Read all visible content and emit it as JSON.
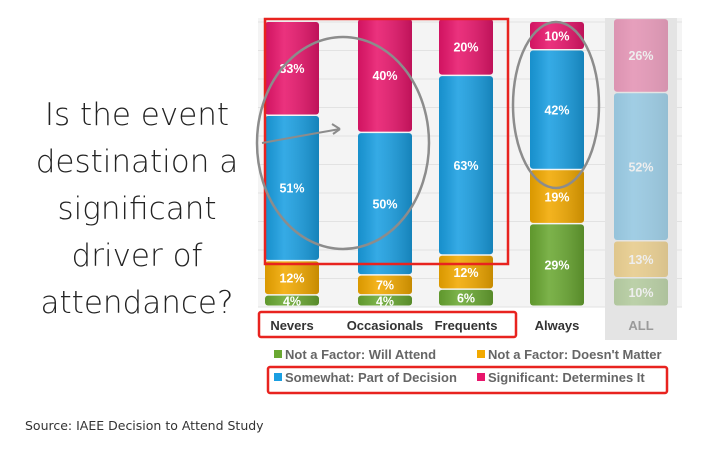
{
  "question_lines": [
    "Is the event",
    "destination a",
    "significant",
    "driver of",
    "attendance?"
  ],
  "source": "Source: IAEE Decision to Attend Study",
  "chart_data": {
    "type": "bar",
    "stacked": true,
    "categories": [
      "Nevers",
      "Occasionals",
      "Frequents",
      "Always",
      "ALL"
    ],
    "series": [
      {
        "name": "Not a Factor: Will Attend",
        "color": "#6aa832",
        "values": [
          4,
          4,
          6,
          29,
          10
        ],
        "labels": [
          "4%",
          "4%",
          "6%",
          "29%",
          "10%"
        ]
      },
      {
        "name": "Not a Factor: Doesn't Matter",
        "color": "#f2a900",
        "values": [
          12,
          7,
          12,
          19,
          13
        ],
        "labels": [
          "12%",
          "7%",
          "12%",
          "19%",
          "13%"
        ]
      },
      {
        "name": "Somewhat: Part of Decision",
        "color": "#1a9fe2",
        "values": [
          51,
          50,
          63,
          42,
          52
        ],
        "labels": [
          "51%",
          "50%",
          "63%",
          "42%",
          "52%"
        ]
      },
      {
        "name": "Significant: Determines It",
        "color": "#e8166c",
        "values": [
          33,
          40,
          20,
          10,
          26
        ],
        "labels": [
          "33%",
          "40%",
          "20%",
          "10%",
          "26%"
        ]
      }
    ],
    "faded_categories": [
      "ALL"
    ],
    "highlighted_categories": [
      "Nevers",
      "Occasionals",
      "Frequents"
    ],
    "circled_categories": [
      "Always"
    ],
    "legend_position": "bottom",
    "highlight_color": "#e8231f"
  }
}
